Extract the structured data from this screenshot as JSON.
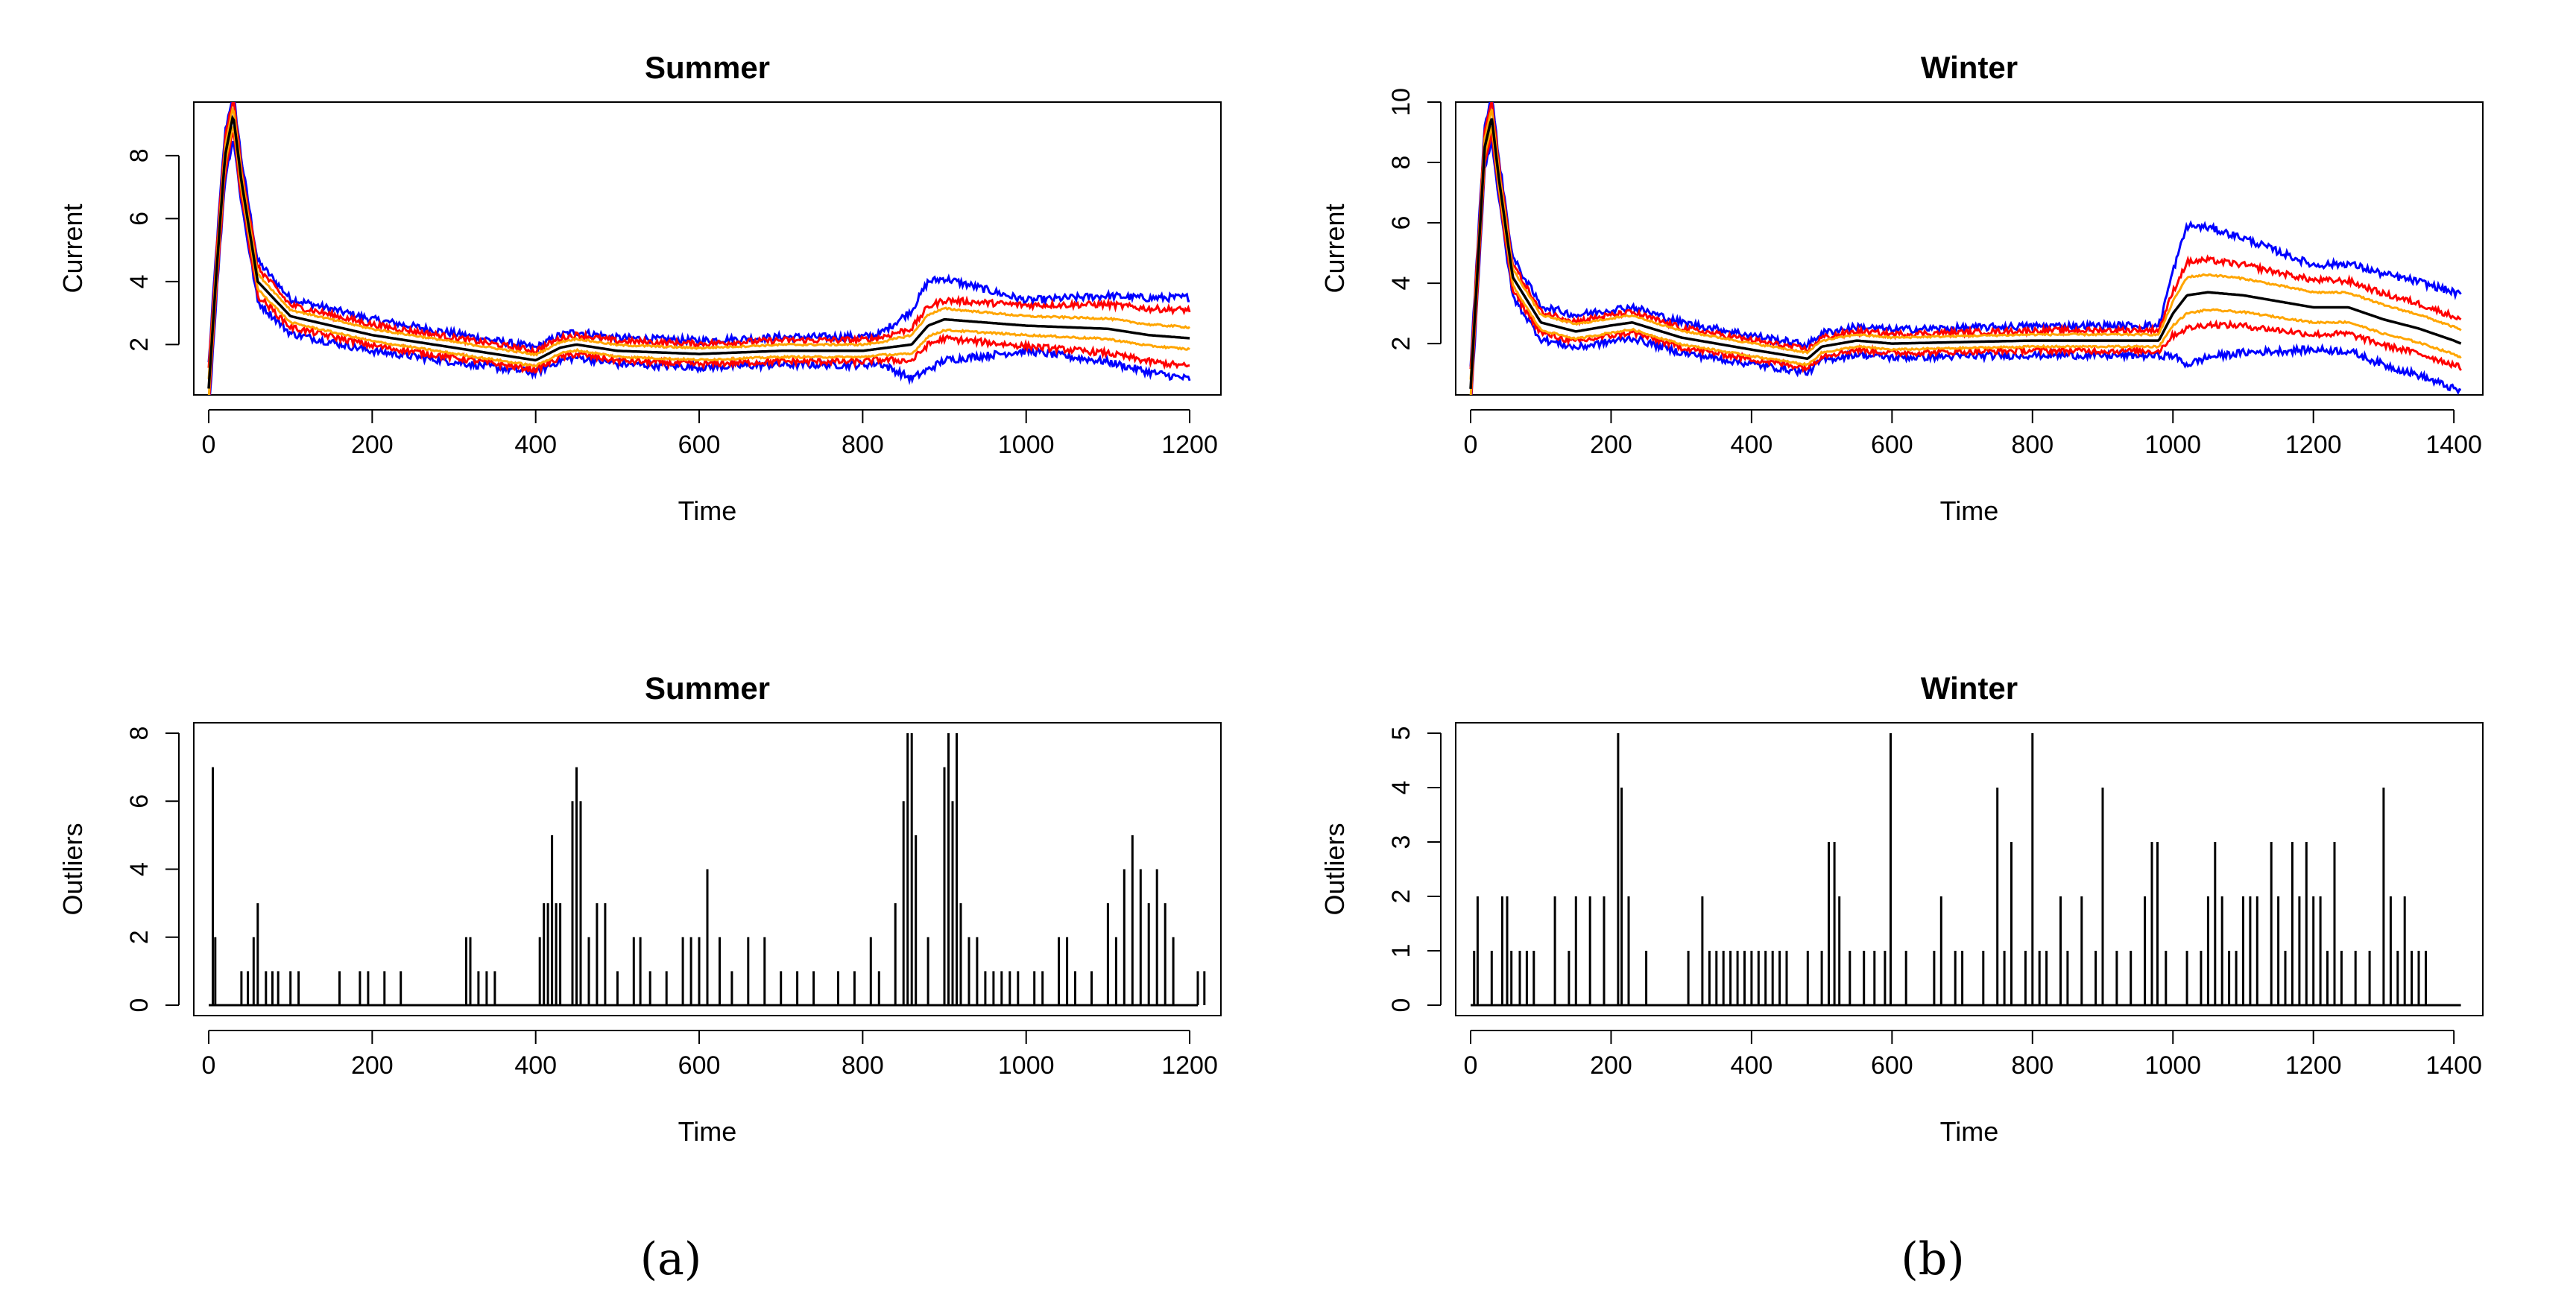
{
  "figure": {
    "captions": [
      "(a)",
      "(b)"
    ],
    "colors": {
      "outer_band": "#0000ff",
      "inner_outlier": "#ff0000",
      "band": "#ffa500",
      "median": "#000000"
    }
  },
  "chart_data": [
    {
      "id": "summer_current",
      "type": "line",
      "title": "Summer",
      "xlabel": "Time",
      "ylabel": "Current",
      "xlim": [
        0,
        1220
      ],
      "ylim": [
        0.4,
        9.7
      ],
      "xticks": [
        0,
        200,
        400,
        600,
        800,
        1000,
        1200
      ],
      "yticks": [
        2,
        4,
        6,
        8
      ],
      "grid": false,
      "legend": "none",
      "series_colors": [
        "blue",
        "red",
        "orange",
        "black"
      ],
      "median": {
        "x": [
          0,
          10,
          20,
          30,
          40,
          60,
          100,
          150,
          200,
          300,
          400,
          430,
          450,
          500,
          600,
          700,
          800,
          860,
          880,
          900,
          950,
          1000,
          1100,
          1150,
          1200
        ],
        "y": [
          0.6,
          4.5,
          8.0,
          9.3,
          7.2,
          4.0,
          2.9,
          2.6,
          2.3,
          1.9,
          1.5,
          1.9,
          2.0,
          1.8,
          1.7,
          1.8,
          1.8,
          2.0,
          2.6,
          2.8,
          2.7,
          2.6,
          2.5,
          2.3,
          2.2
        ]
      },
      "band_halfwidth": {
        "x": [
          0,
          100,
          400,
          820,
          880,
          1000,
          1200
        ],
        "orange": [
          0.3,
          0.2,
          0.18,
          0.2,
          0.35,
          0.3,
          0.35
        ],
        "red": [
          0.6,
          0.35,
          0.3,
          0.35,
          0.6,
          0.65,
          0.9
        ],
        "blue": [
          0.8,
          0.55,
          0.4,
          0.45,
          1.4,
          0.8,
          1.3
        ]
      }
    },
    {
      "id": "winter_current",
      "type": "line",
      "title": "Winter",
      "xlabel": "Time",
      "ylabel": "Current",
      "xlim": [
        0,
        1420
      ],
      "ylim": [
        0.3,
        10.0
      ],
      "xticks": [
        0,
        200,
        400,
        600,
        800,
        1000,
        1200,
        1400
      ],
      "yticks": [
        2,
        4,
        6,
        8,
        10
      ],
      "grid": false,
      "legend": "none",
      "series_colors": [
        "blue",
        "red",
        "orange",
        "black"
      ],
      "median": {
        "x": [
          0,
          10,
          20,
          30,
          40,
          60,
          100,
          150,
          200,
          230,
          300,
          400,
          480,
          500,
          550,
          600,
          800,
          980,
          1000,
          1020,
          1050,
          1100,
          1150,
          1200,
          1250,
          1300,
          1350,
          1400,
          1410
        ],
        "y": [
          0.5,
          4.5,
          8.5,
          9.5,
          7.5,
          4.2,
          2.7,
          2.4,
          2.6,
          2.7,
          2.2,
          1.8,
          1.5,
          1.9,
          2.1,
          2.0,
          2.1,
          2.1,
          3.0,
          3.6,
          3.7,
          3.6,
          3.4,
          3.2,
          3.2,
          2.8,
          2.5,
          2.1,
          2.0
        ]
      },
      "band_halfwidth": {
        "x": [
          0,
          100,
          500,
          980,
          1020,
          1200,
          1400
        ],
        "orange": [
          0.3,
          0.25,
          0.2,
          0.2,
          0.6,
          0.5,
          0.45
        ],
        "red": [
          0.6,
          0.35,
          0.3,
          0.35,
          1.1,
          0.9,
          0.8
        ],
        "blue": [
          0.8,
          0.55,
          0.45,
          0.5,
          2.3,
          1.4,
          1.6
        ]
      }
    },
    {
      "id": "summer_outliers",
      "type": "line",
      "title": "Summer",
      "xlabel": "Time",
      "ylabel": "Outliers",
      "xlim": [
        0,
        1220
      ],
      "ylim": [
        0,
        8
      ],
      "xticks": [
        0,
        200,
        400,
        600,
        800,
        1000,
        1200
      ],
      "yticks": [
        0,
        2,
        4,
        6,
        8
      ],
      "grid": false,
      "legend": "none",
      "spikes": [
        [
          5,
          7
        ],
        [
          8,
          2
        ],
        [
          40,
          1
        ],
        [
          48,
          1
        ],
        [
          55,
          2
        ],
        [
          60,
          3
        ],
        [
          70,
          1
        ],
        [
          78,
          1
        ],
        [
          85,
          1
        ],
        [
          100,
          1
        ],
        [
          110,
          1
        ],
        [
          160,
          1
        ],
        [
          185,
          1
        ],
        [
          195,
          1
        ],
        [
          215,
          1
        ],
        [
          235,
          1
        ],
        [
          315,
          2
        ],
        [
          320,
          2
        ],
        [
          330,
          1
        ],
        [
          340,
          1
        ],
        [
          350,
          1
        ],
        [
          405,
          2
        ],
        [
          410,
          3
        ],
        [
          415,
          3
        ],
        [
          420,
          5
        ],
        [
          425,
          3
        ],
        [
          430,
          3
        ],
        [
          445,
          6
        ],
        [
          450,
          7
        ],
        [
          455,
          6
        ],
        [
          465,
          2
        ],
        [
          475,
          3
        ],
        [
          485,
          3
        ],
        [
          500,
          1
        ],
        [
          520,
          2
        ],
        [
          528,
          2
        ],
        [
          540,
          1
        ],
        [
          560,
          1
        ],
        [
          580,
          2
        ],
        [
          590,
          2
        ],
        [
          600,
          2
        ],
        [
          610,
          4
        ],
        [
          625,
          2
        ],
        [
          640,
          1
        ],
        [
          660,
          2
        ],
        [
          680,
          2
        ],
        [
          700,
          1
        ],
        [
          720,
          1
        ],
        [
          740,
          1
        ],
        [
          770,
          1
        ],
        [
          790,
          1
        ],
        [
          810,
          2
        ],
        [
          820,
          1
        ],
        [
          840,
          3
        ],
        [
          850,
          6
        ],
        [
          855,
          8
        ],
        [
          860,
          8
        ],
        [
          865,
          5
        ],
        [
          880,
          2
        ],
        [
          900,
          7
        ],
        [
          905,
          8
        ],
        [
          910,
          6
        ],
        [
          915,
          8
        ],
        [
          920,
          3
        ],
        [
          930,
          2
        ],
        [
          940,
          2
        ],
        [
          950,
          1
        ],
        [
          960,
          1
        ],
        [
          970,
          1
        ],
        [
          980,
          1
        ],
        [
          990,
          1
        ],
        [
          1010,
          1
        ],
        [
          1020,
          1
        ],
        [
          1040,
          2
        ],
        [
          1050,
          2
        ],
        [
          1060,
          1
        ],
        [
          1080,
          1
        ],
        [
          1100,
          3
        ],
        [
          1110,
          2
        ],
        [
          1120,
          4
        ],
        [
          1130,
          5
        ],
        [
          1140,
          4
        ],
        [
          1150,
          3
        ],
        [
          1160,
          4
        ],
        [
          1170,
          3
        ],
        [
          1180,
          2
        ],
        [
          1210,
          1
        ],
        [
          1218,
          1
        ]
      ]
    },
    {
      "id": "winter_outliers",
      "type": "line",
      "title": "Winter",
      "xlabel": "Time",
      "ylabel": "Outliers",
      "xlim": [
        0,
        1420
      ],
      "ylim": [
        0,
        5
      ],
      "xticks": [
        0,
        200,
        400,
        600,
        800,
        1000,
        1200,
        1400
      ],
      "yticks": [
        0,
        1,
        2,
        3,
        4,
        5
      ],
      "grid": false,
      "legend": "none",
      "spikes": [
        [
          5,
          1
        ],
        [
          10,
          2
        ],
        [
          30,
          1
        ],
        [
          45,
          2
        ],
        [
          52,
          2
        ],
        [
          58,
          1
        ],
        [
          70,
          1
        ],
        [
          80,
          1
        ],
        [
          90,
          1
        ],
        [
          120,
          2
        ],
        [
          140,
          1
        ],
        [
          150,
          2
        ],
        [
          170,
          2
        ],
        [
          190,
          2
        ],
        [
          210,
          5
        ],
        [
          215,
          4
        ],
        [
          225,
          2
        ],
        [
          250,
          1
        ],
        [
          310,
          1
        ],
        [
          330,
          2
        ],
        [
          340,
          1
        ],
        [
          350,
          1
        ],
        [
          360,
          1
        ],
        [
          370,
          1
        ],
        [
          380,
          1
        ],
        [
          390,
          1
        ],
        [
          400,
          1
        ],
        [
          410,
          1
        ],
        [
          420,
          1
        ],
        [
          430,
          1
        ],
        [
          440,
          1
        ],
        [
          450,
          1
        ],
        [
          480,
          1
        ],
        [
          500,
          1
        ],
        [
          510,
          3
        ],
        [
          518,
          3
        ],
        [
          525,
          2
        ],
        [
          540,
          1
        ],
        [
          560,
          1
        ],
        [
          575,
          1
        ],
        [
          590,
          1
        ],
        [
          598,
          5
        ],
        [
          620,
          1
        ],
        [
          660,
          1
        ],
        [
          670,
          2
        ],
        [
          690,
          1
        ],
        [
          700,
          1
        ],
        [
          730,
          1
        ],
        [
          750,
          4
        ],
        [
          760,
          1
        ],
        [
          770,
          3
        ],
        [
          790,
          1
        ],
        [
          800,
          5
        ],
        [
          810,
          1
        ],
        [
          820,
          1
        ],
        [
          840,
          2
        ],
        [
          850,
          1
        ],
        [
          870,
          2
        ],
        [
          890,
          1
        ],
        [
          900,
          4
        ],
        [
          920,
          1
        ],
        [
          940,
          1
        ],
        [
          960,
          2
        ],
        [
          970,
          3
        ],
        [
          978,
          3
        ],
        [
          990,
          1
        ],
        [
          1020,
          1
        ],
        [
          1040,
          1
        ],
        [
          1050,
          2
        ],
        [
          1060,
          3
        ],
        [
          1070,
          2
        ],
        [
          1080,
          1
        ],
        [
          1090,
          1
        ],
        [
          1100,
          2
        ],
        [
          1110,
          2
        ],
        [
          1120,
          2
        ],
        [
          1140,
          3
        ],
        [
          1150,
          2
        ],
        [
          1160,
          1
        ],
        [
          1170,
          3
        ],
        [
          1180,
          2
        ],
        [
          1190,
          3
        ],
        [
          1200,
          2
        ],
        [
          1210,
          2
        ],
        [
          1220,
          1
        ],
        [
          1230,
          3
        ],
        [
          1240,
          1
        ],
        [
          1260,
          1
        ],
        [
          1280,
          1
        ],
        [
          1300,
          4
        ],
        [
          1310,
          2
        ],
        [
          1320,
          1
        ],
        [
          1330,
          2
        ],
        [
          1340,
          1
        ],
        [
          1350,
          1
        ],
        [
          1360,
          1
        ]
      ]
    }
  ]
}
